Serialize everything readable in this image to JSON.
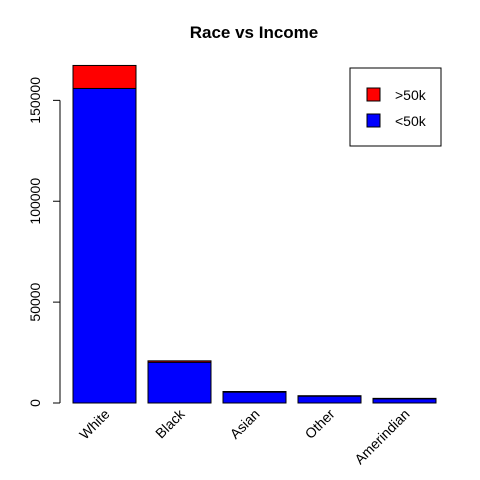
{
  "chart_data": {
    "type": "bar",
    "stacked": true,
    "title": "Race vs Income",
    "xlabel": "",
    "ylabel": "",
    "categories": [
      "White",
      "Black",
      "Asian",
      "Other",
      "Amerindian"
    ],
    "series": [
      {
        "name": "<50k",
        "color": "#0000FF",
        "values": [
          155900,
          20200,
          5400,
          3500,
          2200
        ]
      },
      {
        "name": ">50k",
        "color": "#FF0000",
        "values": [
          11400,
          700,
          300,
          100,
          100
        ]
      }
    ],
    "ylim": [
      0,
      170000
    ],
    "yticks": [
      0,
      50000,
      100000,
      150000
    ],
    "ytick_labels": [
      "0",
      "50000",
      "100000",
      "150000"
    ],
    "legend": {
      "position": "top-right",
      "entries": [
        {
          "label": ">50k",
          "color": "#FF0000"
        },
        {
          "label": "<50k",
          "color": "#0000FF"
        }
      ]
    },
    "grid": false
  }
}
